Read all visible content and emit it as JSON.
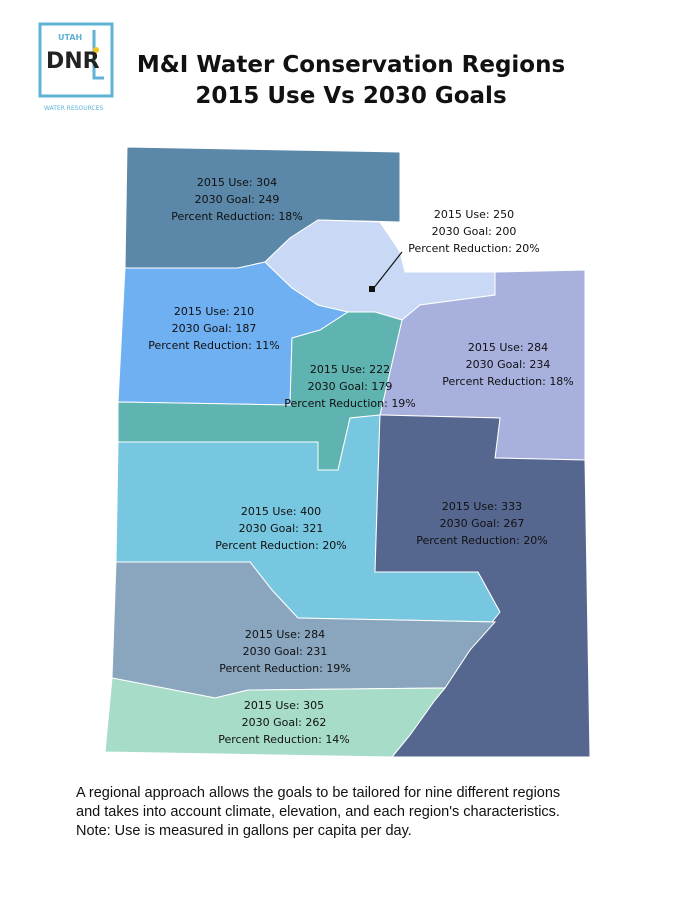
{
  "header": {
    "title_line1": "M&I Water Conservation Regions",
    "title_line2": "2015 Use Vs 2030 Goals"
  },
  "logo": {
    "top_text": "UTAH",
    "main_text": "DNR",
    "bottom_text": "WATER RESOURCES",
    "colors": {
      "border": "#5fb3d6",
      "text": "#222222",
      "accent": "#f0c419"
    }
  },
  "regions": [
    {
      "id": "north-west",
      "color": "#5b87a8",
      "use": "2015 Use: 304",
      "goal": "2030 Goal: 249",
      "reduction": "Percent Reduction: 18%"
    },
    {
      "id": "north-central",
      "color": "#c9d9f5",
      "use": "2015 Use: 250",
      "goal": "2030 Goal: 200",
      "reduction": "Percent Reduction: 20%"
    },
    {
      "id": "west-central",
      "color": "#6fb0f2",
      "use": "2015 Use: 210",
      "goal": "2030 Goal: 187",
      "reduction": "Percent Reduction: 11%"
    },
    {
      "id": "central",
      "color": "#5fb3b0",
      "use": "2015 Use: 222",
      "goal": "2030 Goal: 179",
      "reduction": "Percent Reduction: 19%"
    },
    {
      "id": "north-east",
      "color": "#a8b1dd",
      "use": "2015 Use: 284",
      "goal": "2030 Goal: 234",
      "reduction": "Percent Reduction: 18%"
    },
    {
      "id": "south-central",
      "color": "#78c7e0",
      "use": "2015 Use: 400",
      "goal": "2030 Goal: 321",
      "reduction": "Percent Reduction: 20%"
    },
    {
      "id": "south-east",
      "color": "#56678f",
      "use": "2015 Use: 333",
      "goal": "2030 Goal: 267",
      "reduction": "Percent Reduction: 20%"
    },
    {
      "id": "south-west",
      "color": "#8aa6bf",
      "use": "2015 Use: 284",
      "goal": "2030 Goal: 231",
      "reduction": "Percent Reduction: 19%"
    },
    {
      "id": "south",
      "color": "#a6dcc8",
      "use": "2015 Use: 305",
      "goal": "2030 Goal: 262",
      "reduction": "Percent Reduction: 14%"
    }
  ],
  "footnote": {
    "line1": "A regional approach allows the goals to be tailored for nine different regions",
    "line2": "and takes into account climate, elevation, and each region's characteristics.",
    "line3": "Note:  Use is measured in gallons per capita per day."
  }
}
